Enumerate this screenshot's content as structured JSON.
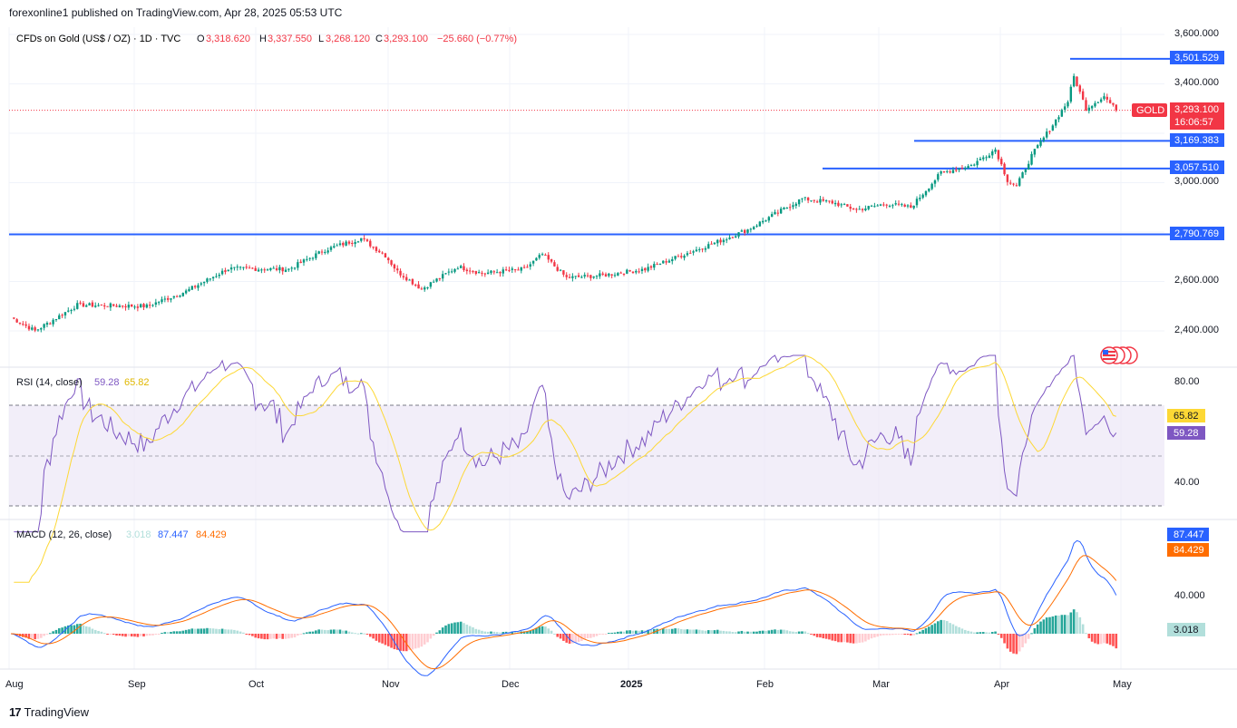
{
  "header": {
    "publish_text": "forexonline1 published on TradingView.com, Apr 28, 2025 05:53 UTC"
  },
  "legend": {
    "symbol": "CFDs on Gold (US$ / OZ) · 1D · TVC",
    "open_label": "O",
    "open": "3,318.620",
    "high_label": "H",
    "high": "3,337.550",
    "low_label": "L",
    "low": "3,268.120",
    "close_label": "C",
    "close": "3,293.100",
    "change": "−25.660 (−0.77%)"
  },
  "price_axis": {
    "ticks": [
      "3,600.000",
      "3,400.000",
      "3,000.000",
      "2,600.000",
      "2,400.000"
    ],
    "levels": [
      "3,501.529",
      "3,169.383",
      "3,057.510",
      "2,790.769"
    ],
    "current_tag": "GOLD",
    "current_price": "3,293.100",
    "countdown": "16:06:57"
  },
  "rsi": {
    "title": "RSI (14, close)",
    "rsi_value": "59.28",
    "ma_value": "65.82",
    "ticks": [
      "80.00",
      "40.00"
    ]
  },
  "macd": {
    "title": "MACD (12, 26, close)",
    "hist_value": "3.018",
    "macd_value": "87.447",
    "signal_value": "84.429",
    "ticks": [
      "40.000"
    ]
  },
  "time_axis": {
    "labels": [
      "Aug",
      "Sep",
      "Oct",
      "Nov",
      "Dec",
      "2025",
      "Feb",
      "Mar",
      "Apr",
      "May"
    ]
  },
  "footer": {
    "brand": "TradingView"
  },
  "colors": {
    "up": "#089981",
    "down": "#f23645",
    "level_line": "#2962ff",
    "rsi": "#7e57c2",
    "rsi_ma": "#fdd835",
    "macd": "#2962ff",
    "signal": "#ff6d00"
  },
  "chart_data": {
    "type": "candlestick",
    "symbol": "CFDs on Gold (US$ / OZ)",
    "interval": "1D",
    "x_range": [
      "Aug 2024",
      "May 2025"
    ],
    "y_range": [
      2340,
      3640
    ],
    "horizontal_levels": [
      3501.529,
      3169.383,
      3057.51,
      2790.769
    ],
    "last_close": 3293.1,
    "monthly_closes": [
      {
        "month": "Aug",
        "close": 2503
      },
      {
        "month": "Sep",
        "close": 2634
      },
      {
        "month": "Oct",
        "close": 2744
      },
      {
        "month": "Nov",
        "close": 2651
      },
      {
        "month": "Dec",
        "close": 2624
      },
      {
        "month": "Jan",
        "close": 2798
      },
      {
        "month": "Feb",
        "close": 2858
      },
      {
        "month": "Mar",
        "close": 3124
      },
      {
        "month": "Apr",
        "close": 3293
      }
    ],
    "anchors": [
      [
        0,
        2455
      ],
      [
        8,
        2400
      ],
      [
        22,
        2505
      ],
      [
        45,
        2500
      ],
      [
        58,
        2560
      ],
      [
        72,
        2652
      ],
      [
        92,
        2650
      ],
      [
        104,
        2728
      ],
      [
        116,
        2775
      ],
      [
        124,
        2705
      ],
      [
        128,
        2640
      ],
      [
        136,
        2570
      ],
      [
        148,
        2660
      ],
      [
        156,
        2633
      ],
      [
        170,
        2650
      ],
      [
        176,
        2710
      ],
      [
        184,
        2615
      ],
      [
        196,
        2625
      ],
      [
        210,
        2650
      ],
      [
        224,
        2715
      ],
      [
        236,
        2770
      ],
      [
        244,
        2810
      ],
      [
        254,
        2880
      ],
      [
        262,
        2935
      ],
      [
        272,
        2920
      ],
      [
        280,
        2890
      ],
      [
        290,
        2915
      ],
      [
        298,
        2900
      ],
      [
        308,
        3040
      ],
      [
        318,
        3070
      ],
      [
        326,
        3135
      ],
      [
        330,
        3010
      ],
      [
        333,
        2985
      ],
      [
        338,
        3110
      ],
      [
        345,
        3235
      ],
      [
        350,
        3330
      ],
      [
        352,
        3430
      ],
      [
        356,
        3300
      ],
      [
        362,
        3350
      ],
      [
        366,
        3293
      ]
    ],
    "rsi": {
      "period": 14,
      "last": 59.28,
      "ma_last": 65.82,
      "upper_band": 70,
      "lower_band": 30
    },
    "macd": {
      "fast": 12,
      "slow": 26,
      "macd_last": 87.447,
      "signal_last": 84.429,
      "hist_last": 3.018
    }
  }
}
